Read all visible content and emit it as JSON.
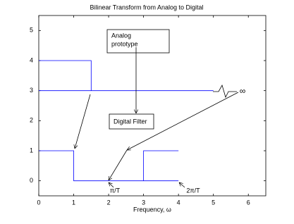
{
  "chart_data": {
    "type": "line",
    "title": "Bilinear Transform from Analog to Digital",
    "xlabel": "Frequency, ω",
    "xlim": [
      0,
      6.5
    ],
    "ylim": [
      -0.5,
      5.5
    ],
    "xticks": [
      0,
      1,
      2,
      3,
      4,
      5,
      6
    ],
    "yticks": [
      0,
      1,
      2,
      3,
      4,
      5
    ],
    "series": [
      {
        "color": "#0000ff",
        "x": [
          0,
          1.5,
          1.5
        ],
        "y": [
          4,
          4,
          3
        ]
      },
      {
        "color": "#0000ff",
        "x": [
          0,
          5
        ],
        "y": [
          3,
          3
        ]
      },
      {
        "color": "#0000ff",
        "x": [
          0,
          1,
          1,
          4
        ],
        "y": [
          1,
          1,
          0,
          0
        ]
      },
      {
        "color": "#0000ff",
        "x": [
          3,
          3,
          4
        ],
        "y": [
          0,
          1,
          1
        ]
      }
    ],
    "annotations": [
      "Analog",
      "prototype",
      "Digital Filter",
      "π/T",
      "2π/T",
      "∞"
    ]
  }
}
